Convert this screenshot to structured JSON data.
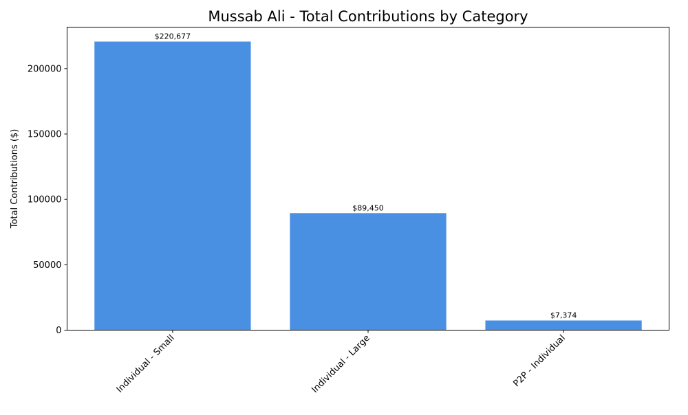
{
  "chart_data": {
    "type": "bar",
    "title": "Mussab Ali - Total Contributions by Category",
    "xlabel": "",
    "ylabel": "Total Contributions ($)",
    "categories": [
      "Individual - Small",
      "Individual - Large",
      "P2P - Individual"
    ],
    "values": [
      220677,
      89450,
      7374
    ],
    "data_labels": [
      "$220,677",
      "$89,450",
      "$7,374"
    ],
    "ylim": [
      0,
      231711
    ],
    "yticks": [
      0,
      50000,
      100000,
      150000,
      200000
    ],
    "ytick_labels": [
      "0",
      "50000",
      "100000",
      "150000",
      "200000"
    ],
    "grid": false,
    "bar_color": "#4a90e2"
  }
}
